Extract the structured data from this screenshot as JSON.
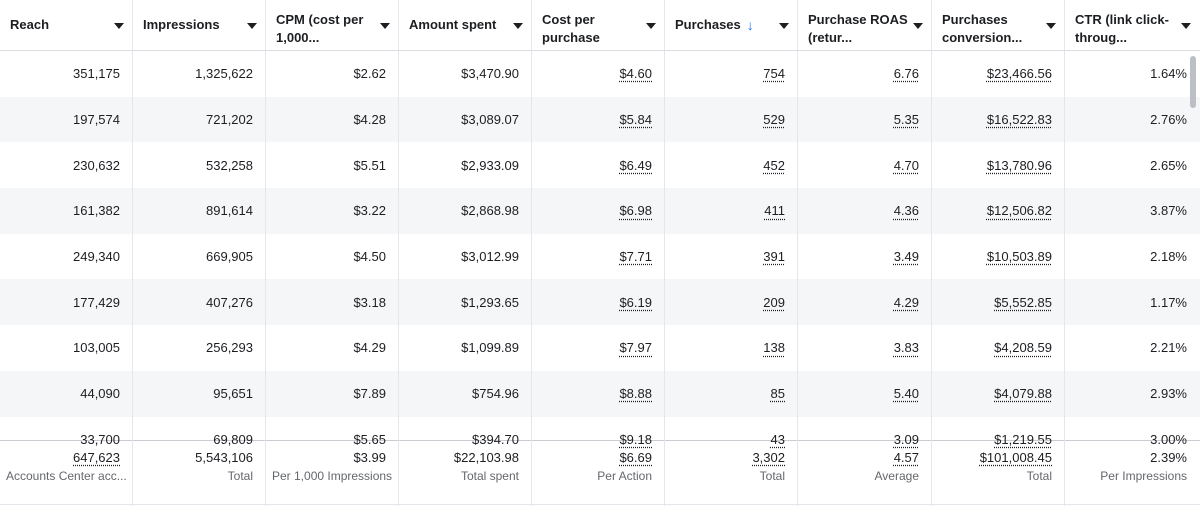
{
  "columns": [
    {
      "label": "Reach"
    },
    {
      "label": "Impressions"
    },
    {
      "label": "CPM (cost per 1,000..."
    },
    {
      "label": "Amount spent"
    },
    {
      "label": "Cost per purchase"
    },
    {
      "label": "Purchases",
      "sort_icon": "arrow-down-icon"
    },
    {
      "label": "Purchase ROAS (retur..."
    },
    {
      "label": "Purchases conversion..."
    },
    {
      "label": "CTR (link click-throug..."
    }
  ],
  "rows": [
    [
      "351,175",
      "1,325,622",
      "$2.62",
      "$3,470.90",
      "$4.60",
      "754",
      "6.76",
      "$23,466.56",
      "1.64%"
    ],
    [
      "197,574",
      "721,202",
      "$4.28",
      "$3,089.07",
      "$5.84",
      "529",
      "5.35",
      "$16,522.83",
      "2.76%"
    ],
    [
      "230,632",
      "532,258",
      "$5.51",
      "$2,933.09",
      "$6.49",
      "452",
      "4.70",
      "$13,780.96",
      "2.65%"
    ],
    [
      "161,382",
      "891,614",
      "$3.22",
      "$2,868.98",
      "$6.98",
      "411",
      "4.36",
      "$12,506.82",
      "3.87%"
    ],
    [
      "249,340",
      "669,905",
      "$4.50",
      "$3,012.99",
      "$7.71",
      "391",
      "3.49",
      "$10,503.89",
      "2.18%"
    ],
    [
      "177,429",
      "407,276",
      "$3.18",
      "$1,293.65",
      "$6.19",
      "209",
      "4.29",
      "$5,552.85",
      "1.17%"
    ],
    [
      "103,005",
      "256,293",
      "$4.29",
      "$1,099.89",
      "$7.97",
      "138",
      "3.83",
      "$4,208.59",
      "2.21%"
    ],
    [
      "44,090",
      "95,651",
      "$7.89",
      "$754.96",
      "$8.88",
      "85",
      "5.40",
      "$4,079.88",
      "2.93%"
    ],
    [
      "33,700",
      "69,809",
      "$5.65",
      "$394.70",
      "$9.18",
      "43",
      "3.09",
      "$1,219.55",
      "3.00%"
    ]
  ],
  "totals": [
    {
      "value": "647,623",
      "sub": "Accounts Center acc..."
    },
    {
      "value": "5,543,106",
      "sub": "Total"
    },
    {
      "value": "$3.99",
      "sub": "Per 1,000 Impressions"
    },
    {
      "value": "$22,103.98",
      "sub": "Total spent"
    },
    {
      "value": "$6.69",
      "sub": "Per Action"
    },
    {
      "value": "3,302",
      "sub": "Total"
    },
    {
      "value": "4.57",
      "sub": "Average"
    },
    {
      "value": "$101,008.45",
      "sub": "Total"
    },
    {
      "value": "2.39%",
      "sub": "Per Impressions"
    }
  ],
  "colors": {
    "sort_arrow": "#1877f2",
    "alt_row": "#f5f6f7"
  }
}
